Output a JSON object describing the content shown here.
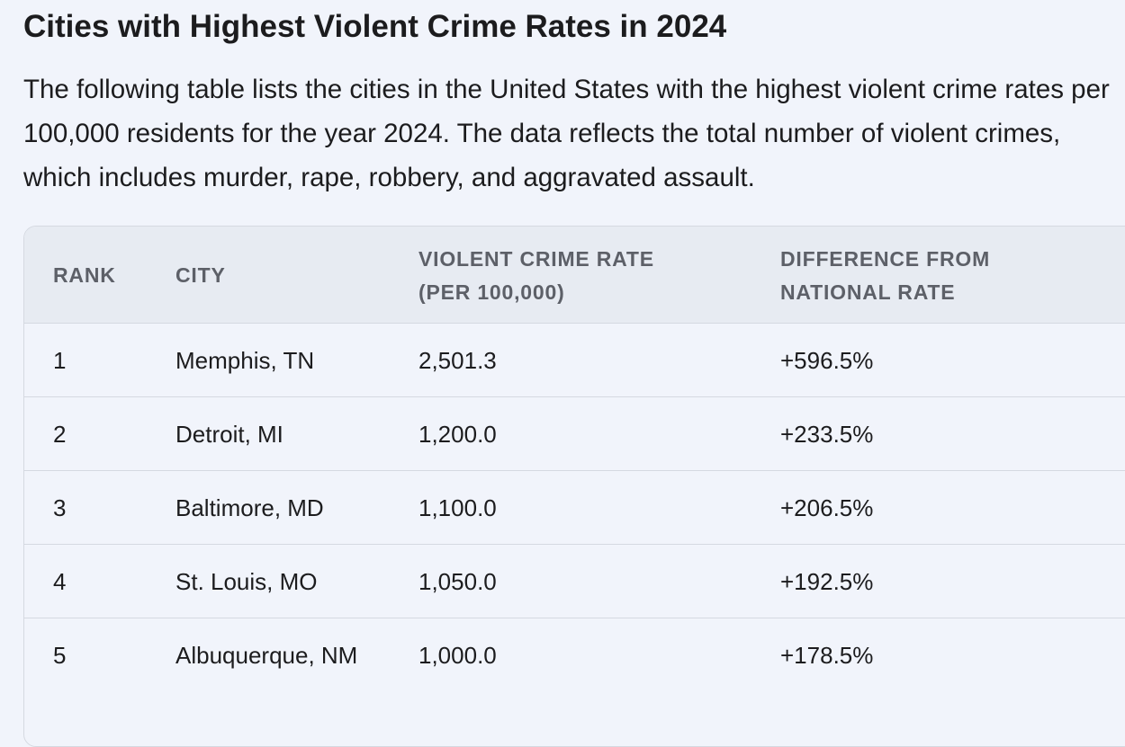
{
  "page": {
    "title": "Cities with Highest Violent Crime Rates in 2024",
    "intro": "The following table lists the cities in the United States with the highest violent crime rates per 100,000 residents for the year 2024. The data reflects the total number of violent crimes, which includes murder, rape, robbery, and aggravated assault."
  },
  "table": {
    "headers": {
      "rank": "RANK",
      "city": "CITY",
      "rate_line1": "VIOLENT CRIME RATE",
      "rate_line2": "(PER 100,000)",
      "diff_line1": "DIFFERENCE FROM",
      "diff_line2": "NATIONAL RATE"
    },
    "rows": [
      {
        "rank": "1",
        "city": "Memphis, TN",
        "rate": "2,501.3",
        "diff": "+596.5%"
      },
      {
        "rank": "2",
        "city": "Detroit, MI",
        "rate": "1,200.0",
        "diff": "+233.5%"
      },
      {
        "rank": "3",
        "city": "Baltimore, MD",
        "rate": "1,100.0",
        "diff": "+206.5%"
      },
      {
        "rank": "4",
        "city": "St. Louis, MO",
        "rate": "1,050.0",
        "diff": "+192.5%"
      },
      {
        "rank": "5",
        "city": "Albuquerque, NM",
        "rate": "1,000.0",
        "diff": "+178.5%"
      }
    ]
  }
}
